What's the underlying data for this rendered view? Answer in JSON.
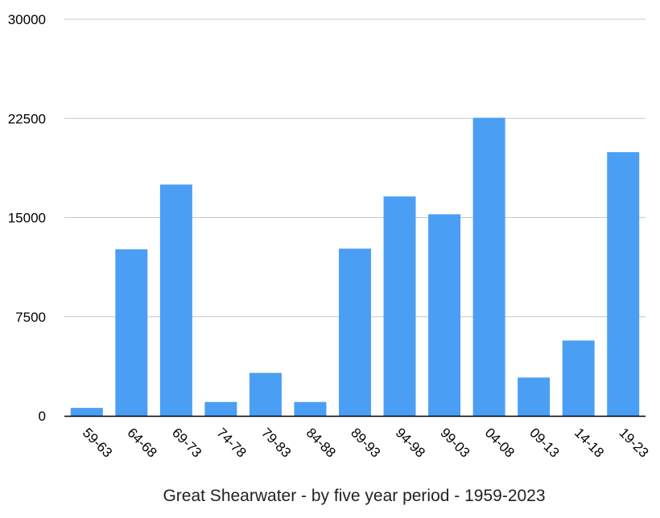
{
  "chart_data": {
    "type": "bar",
    "title": "",
    "caption": "Great Shearwater - by five year period - 1959-2023",
    "xlabel": "",
    "ylabel": "",
    "ylim": [
      0,
      30000
    ],
    "yticks": [
      0,
      7500,
      15000,
      22500,
      30000
    ],
    "grid": true,
    "bar_color": "#4a9ff5",
    "grid_color": "#c8c8c8",
    "categories": [
      "59-63",
      "64-68",
      "69-73",
      "74-78",
      "79-83",
      "84-88",
      "89-93",
      "94-98",
      "99-03",
      "04-08",
      "09-13",
      "14-18",
      "19-23"
    ],
    "values": [
      600,
      12600,
      17500,
      1050,
      3250,
      1050,
      12650,
      16600,
      15250,
      22550,
      2900,
      5700,
      19950
    ]
  }
}
